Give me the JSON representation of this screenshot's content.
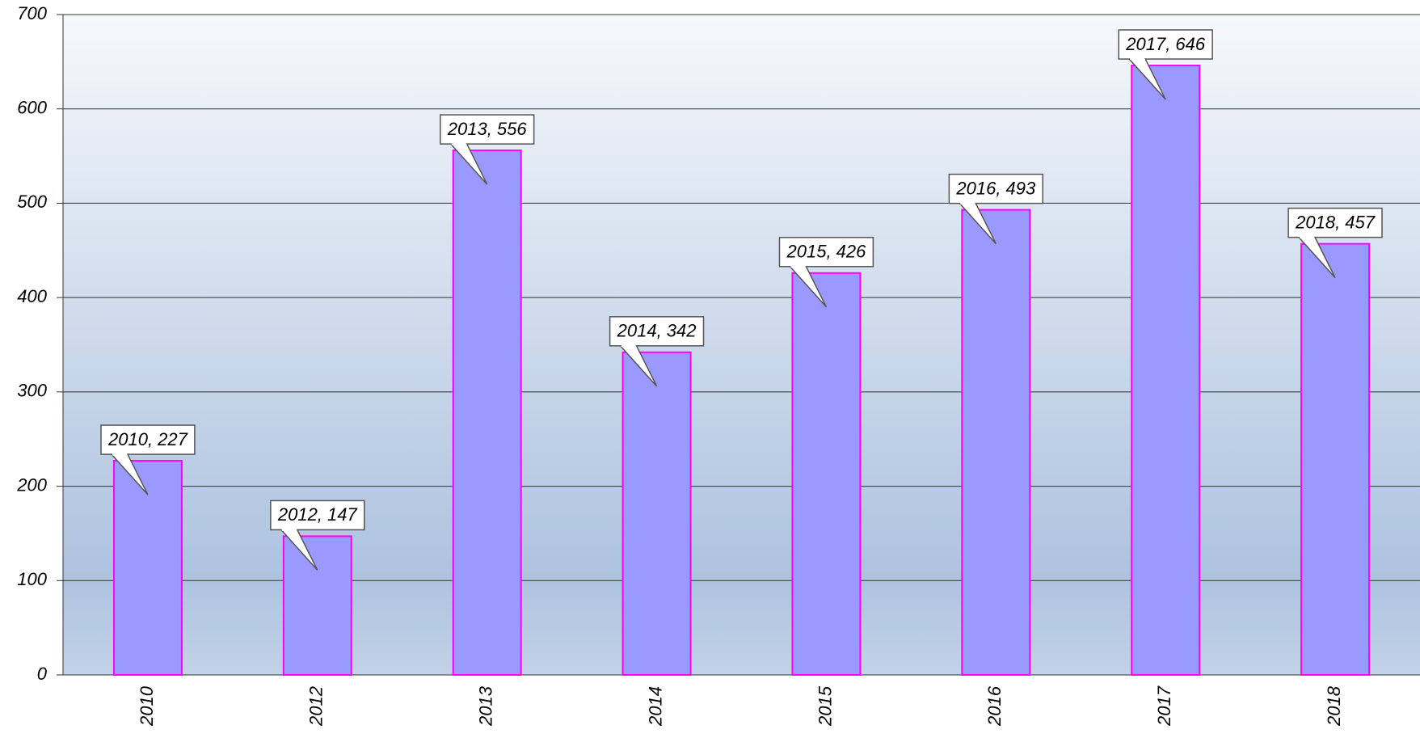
{
  "chart_data": {
    "type": "bar",
    "categories": [
      "2010",
      "2012",
      "2013",
      "2014",
      "2015",
      "2016",
      "2017",
      "2018"
    ],
    "values": [
      227,
      147,
      556,
      342,
      426,
      493,
      646,
      457
    ],
    "value_labels": [
      "2010, 227",
      "2012, 147",
      "2013, 556",
      "2014, 342",
      "2015, 426",
      "2016, 493",
      "2017, 646",
      "2018, 457"
    ],
    "color": "#9999ff",
    "edge_color": "#ff00ff",
    "ylim": [
      0,
      700
    ],
    "yticks": [
      0,
      100,
      200,
      300,
      400,
      500,
      600,
      700
    ],
    "grid": true
  }
}
